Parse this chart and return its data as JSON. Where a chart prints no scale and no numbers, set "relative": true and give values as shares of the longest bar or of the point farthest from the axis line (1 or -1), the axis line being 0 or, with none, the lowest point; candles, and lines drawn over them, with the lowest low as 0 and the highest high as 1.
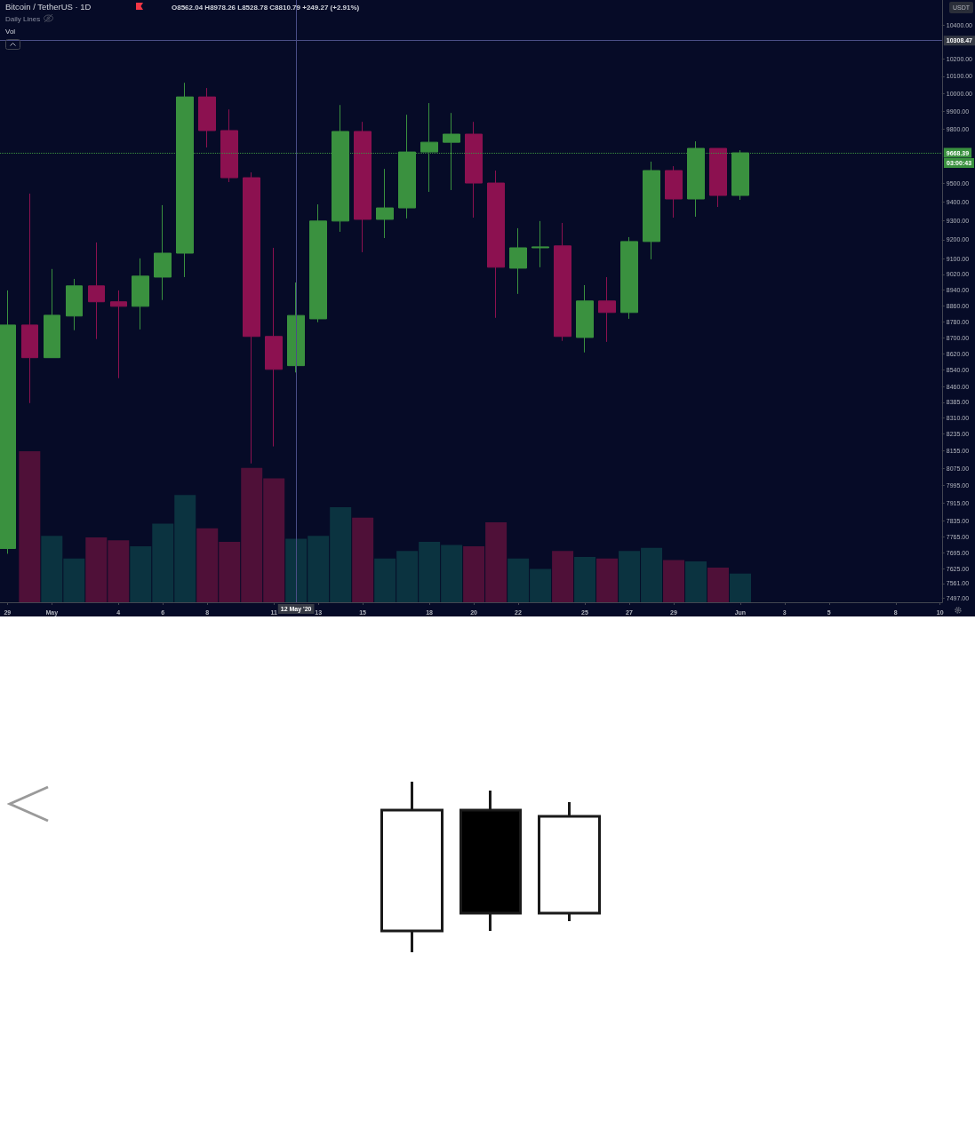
{
  "chart_data": [
    {
      "type": "candlestick",
      "title": "Bitcoin / TetherUS · 1D",
      "annotations": [
        "O8562.04 H8978.26 L8528.78 C8810.79 +249.27 (+2.91%)",
        "Daily Lines",
        "USDT",
        "03:00:43"
      ],
      "x": [
        "2020-04-29",
        "2020-04-30",
        "2020-05-01",
        "2020-05-02",
        "2020-05-03",
        "2020-05-04",
        "2020-05-05",
        "2020-05-06",
        "2020-05-07",
        "2020-05-08",
        "2020-05-09",
        "2020-05-10",
        "2020-05-11",
        "2020-05-12",
        "2020-05-13",
        "2020-05-14",
        "2020-05-15",
        "2020-05-16",
        "2020-05-17",
        "2020-05-18",
        "2020-05-19",
        "2020-05-20",
        "2020-05-21",
        "2020-05-22",
        "2020-05-23",
        "2020-05-24",
        "2020-05-25",
        "2020-05-26",
        "2020-05-27",
        "2020-05-28",
        "2020-05-29",
        "2020-05-30",
        "2020-05-31",
        "2020-06-01"
      ],
      "ohlc": [
        [
          7713,
          8938,
          7690,
          8763
        ],
        [
          8763,
          9446,
          8381,
          8601
        ],
        [
          8601,
          9048,
          8601,
          8812
        ],
        [
          8808,
          8997,
          8737,
          8961
        ],
        [
          8961,
          9186,
          8693,
          8880
        ],
        [
          8880,
          8938,
          8501,
          8857
        ],
        [
          8857,
          9103,
          8741,
          9011
        ],
        [
          9006,
          9384,
          8889,
          9130
        ],
        [
          9130,
          10063,
          9006,
          9982
        ],
        [
          9982,
          10033,
          9698,
          9792
        ],
        [
          9792,
          9911,
          9508,
          9532
        ],
        [
          9532,
          9561,
          8097,
          8706
        ],
        [
          8706,
          9158,
          8176,
          8544
        ],
        [
          8562.04,
          8978.26,
          8528.78,
          8810.79
        ],
        [
          8794,
          9388,
          8777,
          9299
        ],
        [
          9299,
          9936,
          9242,
          9787
        ],
        [
          9787,
          9841,
          9135,
          9308
        ],
        [
          9308,
          9580,
          9209,
          9369
        ],
        [
          9369,
          9881,
          9313,
          9673
        ],
        [
          9673,
          9947,
          9455,
          9727
        ],
        [
          9727,
          9891,
          9465,
          9772
        ],
        [
          9772,
          9841,
          9317,
          9503
        ],
        [
          9503,
          9571,
          8799,
          9057
        ],
        [
          9052,
          9261,
          8920,
          9158
        ],
        [
          9158,
          9299,
          9057,
          9163
        ],
        [
          9168,
          9289,
          8684,
          8706
        ],
        [
          8701,
          8965,
          8627,
          8884
        ],
        [
          8884,
          9006,
          8679,
          8826
        ],
        [
          8826,
          9214,
          8794,
          9191
        ],
        [
          9191,
          9620,
          9098,
          9571
        ],
        [
          9571,
          9595,
          9317,
          9417
        ],
        [
          9417,
          9732,
          9322,
          9693
        ],
        [
          9693,
          9693,
          9374,
          9436
        ],
        [
          9436,
          9683,
          9412,
          9668.39
        ]
      ],
      "colors": [
        "#3a913f",
        "#8c1150",
        "#3a913f",
        "#3a913f",
        "#8c1150",
        "#8c1150",
        "#3a913f",
        "#3a913f",
        "#3a913f",
        "#8c1150",
        "#8c1150",
        "#8c1150",
        "#8c1150",
        "#3a913f",
        "#3a913f",
        "#3a913f",
        "#8c1150",
        "#3a913f",
        "#3a913f",
        "#3a913f",
        "#3a913f",
        "#8c1150",
        "#8c1150",
        "#3a913f",
        "#3a913f",
        "#8c1150",
        "#3a913f",
        "#8c1150",
        "#3a913f",
        "#3a913f",
        "#8c1150",
        "#3a913f",
        "#8c1150",
        "#3a913f"
      ],
      "xlim": [
        "2020-04-28T16:00",
        "2020-06-10T02:00"
      ],
      "xticks": [
        {
          "value": "2020-04-29",
          "label": "29"
        },
        {
          "value": "2020-05-01",
          "label": "May"
        },
        {
          "value": "2020-05-04",
          "label": "4"
        },
        {
          "value": "2020-05-06",
          "label": "6"
        },
        {
          "value": "2020-05-08",
          "label": "8"
        },
        {
          "value": "2020-05-11",
          "label": "11"
        },
        {
          "value": "2020-05-13",
          "label": "13"
        },
        {
          "value": "2020-05-15",
          "label": "15"
        },
        {
          "value": "2020-05-18",
          "label": "18"
        },
        {
          "value": "2020-05-20",
          "label": "20"
        },
        {
          "value": "2020-05-22",
          "label": "22"
        },
        {
          "value": "2020-05-25",
          "label": "25"
        },
        {
          "value": "2020-05-27",
          "label": "27"
        },
        {
          "value": "2020-05-29",
          "label": "29"
        },
        {
          "value": "2020-06-01",
          "label": "Jun"
        },
        {
          "value": "2020-06-03",
          "label": "3"
        },
        {
          "value": "2020-06-05",
          "label": "5"
        },
        {
          "value": "2020-06-08",
          "label": "8"
        },
        {
          "value": "2020-06-10",
          "label": "10"
        }
      ],
      "log": true,
      "ylim": [
        7480,
        10550
      ],
      "yticks": [
        {
          "value": 7497,
          "label": "7497.00"
        },
        {
          "value": 7561,
          "label": "7561.00"
        },
        {
          "value": 7625,
          "label": "7625.00"
        },
        {
          "value": 7695,
          "label": "7695.00"
        },
        {
          "value": 7765,
          "label": "7765.00"
        },
        {
          "value": 7835,
          "label": "7835.00"
        },
        {
          "value": 7915,
          "label": "7915.00"
        },
        {
          "value": 7995,
          "label": "7995.00"
        },
        {
          "value": 8075,
          "label": "8075.00"
        },
        {
          "value": 8155,
          "label": "8155.00"
        },
        {
          "value": 8235,
          "label": "8235.00"
        },
        {
          "value": 8310,
          "label": "8310.00"
        },
        {
          "value": 8385,
          "label": "8385.00"
        },
        {
          "value": 8460,
          "label": "8460.00"
        },
        {
          "value": 8540,
          "label": "8540.00"
        },
        {
          "value": 8620,
          "label": "8620.00"
        },
        {
          "value": 8700,
          "label": "8700.00"
        },
        {
          "value": 8780,
          "label": "8780.00"
        },
        {
          "value": 8860,
          "label": "8860.00"
        },
        {
          "value": 8940,
          "label": "8940.00"
        },
        {
          "value": 9020,
          "label": "9020.00"
        },
        {
          "value": 9100,
          "label": "9100.00"
        },
        {
          "value": 9200,
          "label": "9200.00"
        },
        {
          "value": 9300,
          "label": "9300.00"
        },
        {
          "value": 9400,
          "label": "9400.00"
        },
        {
          "value": 9500,
          "label": "9500.00"
        },
        {
          "value": 9800,
          "label": "9800.00"
        },
        {
          "value": 9900,
          "label": "9900.00"
        },
        {
          "value": 10000,
          "label": "10000.00"
        },
        {
          "value": 10100,
          "label": "10100.00"
        },
        {
          "value": 10200,
          "label": "10200.00"
        },
        {
          "value": 10400,
          "label": "10400.00"
        }
      ],
      "ref_lines": [
        {
          "axis": "x",
          "value": "2020-05-12",
          "label": "12 May '20",
          "color": "#4a4e86",
          "line_style": "solid"
        },
        {
          "axis": "y",
          "value": 10308.47,
          "label": "10308.47",
          "color": "#4a4e86",
          "line_style": "solid"
        },
        {
          "axis": "y",
          "value": 9668.39,
          "label": "9668.39",
          "color": "#3a913f",
          "line_style": "dotted"
        }
      ]
    },
    {
      "type": "bar",
      "title": "Vol",
      "relative": true,
      "x": [
        "2020-04-30",
        "2020-05-01",
        "2020-05-02",
        "2020-05-03",
        "2020-05-04",
        "2020-05-05",
        "2020-05-06",
        "2020-05-07",
        "2020-05-08",
        "2020-05-09",
        "2020-05-10",
        "2020-05-11",
        "2020-05-12",
        "2020-05-13",
        "2020-05-14",
        "2020-05-15",
        "2020-05-16",
        "2020-05-17",
        "2020-05-18",
        "2020-05-19",
        "2020-05-20",
        "2020-05-21",
        "2020-05-22",
        "2020-05-23",
        "2020-05-24",
        "2020-05-25",
        "2020-05-26",
        "2020-05-27",
        "2020-05-28",
        "2020-05-29",
        "2020-05-30",
        "2020-05-31",
        "2020-06-01"
      ],
      "xlim": [
        "2020-04-28T16:00",
        "2020-06-10T02:00"
      ],
      "values": [
        1,
        0.44,
        0.29,
        0.43,
        0.41,
        0.37,
        0.52,
        0.71,
        0.49,
        0.4,
        0.89,
        0.82,
        0.42,
        0.44,
        0.63,
        0.56,
        0.29,
        0.34,
        0.4,
        0.38,
        0.37,
        0.53,
        0.29,
        0.22,
        0.34,
        0.3,
        0.29,
        0.34,
        0.36,
        0.28,
        0.27,
        0.23,
        0.19
      ],
      "colors": [
        "#4f1038",
        "#0b3340",
        "#0b3340",
        "#4f1038",
        "#4f1038",
        "#0b3340",
        "#0b3340",
        "#0b3340",
        "#4f1038",
        "#4f1038",
        "#4f1038",
        "#4f1038",
        "#0b3340",
        "#0b3340",
        "#0b3340",
        "#4f1038",
        "#0b3340",
        "#0b3340",
        "#0b3340",
        "#0b3340",
        "#4f1038",
        "#4f1038",
        "#0b3340",
        "#0b3340",
        "#4f1038",
        "#0b3340",
        "#4f1038",
        "#0b3340",
        "#0b3340",
        "#4f1038",
        "#0b3340",
        "#4f1038",
        "#0b3340"
      ]
    },
    {
      "type": "candlestick",
      "relative": true,
      "categories": [
        null,
        null,
        null
      ],
      "ohlc": [
        [
          0.125,
          1,
          0,
          0.833
        ],
        [
          0.833,
          0.948,
          0.125,
          0.229
        ],
        [
          0.229,
          0.88,
          0.182,
          0.797
        ]
      ],
      "colors": [
        "#ffffff",
        "#000000",
        "#ffffff"
      ]
    }
  ]
}
